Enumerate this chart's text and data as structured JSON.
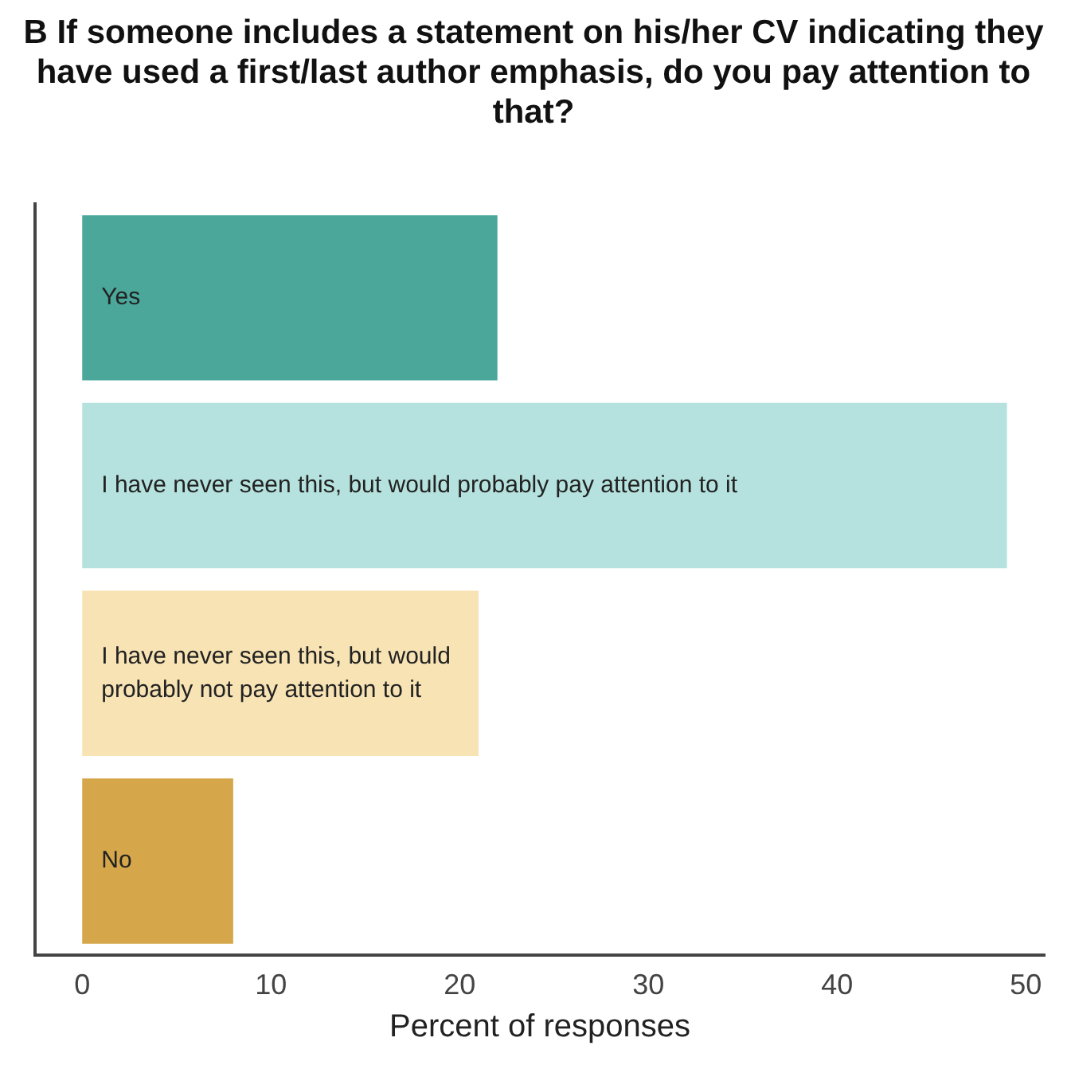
{
  "chart_data": {
    "type": "bar",
    "orientation": "horizontal",
    "title": "B If someone includes a statement on his/her CV indicating they have used a first/last author emphasis, do you pay attention to that?",
    "xlabel": "Percent of responses",
    "categories": [
      "Yes",
      "I have never seen this, but would probably pay attention to it",
      "I have never seen this, but would probably not pay attention to it",
      "No"
    ],
    "values": [
      22,
      49,
      21,
      8
    ],
    "colors": [
      "#4aa79a",
      "#b5e2de",
      "#f7e3b4",
      "#d5a64a"
    ],
    "xlim": [
      -2.5,
      51
    ],
    "xticks": [
      0,
      10,
      20,
      30,
      40,
      50
    ],
    "tick_labels": "x",
    "grid": false,
    "legend": false
  }
}
